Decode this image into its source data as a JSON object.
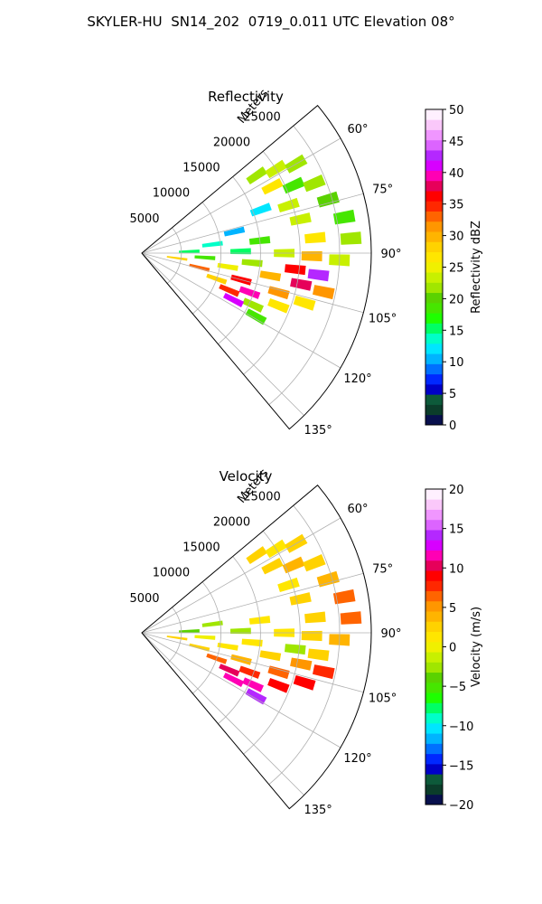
{
  "figure_title": "SKYLER-HU  SN14_202  0719_0.011 UTC Elevation 08°",
  "chart_data": [
    {
      "type": "heatmap",
      "projection": "polar-sector",
      "title": "Reflectivity",
      "radial_axis_label": "Meters",
      "radial_ticks": [
        "5000",
        "10000",
        "15000",
        "20000",
        "25000"
      ],
      "radial_tick_values": [
        5000,
        10000,
        15000,
        20000,
        25000
      ],
      "radial_max": 29000,
      "angular_range_deg": [
        50,
        140
      ],
      "angular_tick_values": [
        60,
        75,
        90,
        105,
        120,
        135
      ],
      "angular_ticks": [
        "60°",
        "75°",
        "90°",
        "105°",
        "120°",
        "135°"
      ],
      "grid": true,
      "colorbar": {
        "label": "Reflectivity dBZ",
        "min": 0,
        "max": 50,
        "tick_values": [
          0,
          5,
          10,
          15,
          20,
          25,
          30,
          35,
          40,
          45,
          50
        ],
        "ticks": [
          "0",
          "5",
          "10",
          "15",
          "20",
          "25",
          "30",
          "35",
          "40",
          "45",
          "50"
        ],
        "colors": [
          "#08104d",
          "#0b3d2a",
          "#0d5a3a",
          "#0000c8",
          "#0028ff",
          "#0070ff",
          "#00b4ff",
          "#00e6ff",
          "#00ffc8",
          "#00ff64",
          "#1eff00",
          "#46e600",
          "#5ad200",
          "#a0e600",
          "#c8f000",
          "#f0f000",
          "#ffe600",
          "#ffd200",
          "#ffb400",
          "#ff9600",
          "#ff6400",
          "#ff2800",
          "#ff0000",
          "#e6005a",
          "#ff00b4",
          "#d700ff",
          "#b428ff",
          "#dc64ff",
          "#f096ff",
          "#fac8fa",
          "#fff0ff"
        ]
      },
      "cells": [
        {
          "az": 56,
          "r": 17500,
          "v": 22
        },
        {
          "az": 58,
          "r": 20000,
          "v": 24
        },
        {
          "az": 60,
          "r": 22500,
          "v": 21
        },
        {
          "az": 63,
          "r": 18500,
          "v": 26
        },
        {
          "az": 66,
          "r": 21000,
          "v": 19
        },
        {
          "az": 68,
          "r": 23500,
          "v": 22
        },
        {
          "az": 70,
          "r": 16000,
          "v": 12
        },
        {
          "az": 72,
          "r": 19500,
          "v": 24
        },
        {
          "az": 74,
          "r": 24500,
          "v": 20
        },
        {
          "az": 77,
          "r": 12000,
          "v": 11
        },
        {
          "az": 78,
          "r": 20500,
          "v": 23
        },
        {
          "az": 80,
          "r": 26000,
          "v": 19
        },
        {
          "az": 83,
          "r": 9000,
          "v": 13
        },
        {
          "az": 84,
          "r": 15000,
          "v": 18
        },
        {
          "az": 85,
          "r": 22000,
          "v": 27
        },
        {
          "az": 86,
          "r": 26500,
          "v": 21
        },
        {
          "az": 88,
          "r": 6000,
          "v": 16
        },
        {
          "az": 89,
          "r": 12500,
          "v": 15
        },
        {
          "az": 90,
          "r": 18000,
          "v": 23
        },
        {
          "az": 91,
          "r": 21500,
          "v": 30
        },
        {
          "az": 92,
          "r": 25000,
          "v": 24
        },
        {
          "az": 94,
          "r": 8000,
          "v": 19
        },
        {
          "az": 95,
          "r": 14000,
          "v": 22
        },
        {
          "az": 96,
          "r": 19500,
          "v": 36
        },
        {
          "az": 97,
          "r": 22500,
          "v": 42
        },
        {
          "az": 98,
          "r": 4500,
          "v": 28
        },
        {
          "az": 99,
          "r": 11000,
          "v": 25
        },
        {
          "az": 100,
          "r": 16500,
          "v": 30
        },
        {
          "az": 101,
          "r": 20500,
          "v": 38
        },
        {
          "az": 102,
          "r": 23500,
          "v": 32
        },
        {
          "az": 104,
          "r": 7500,
          "v": 33
        },
        {
          "az": 105,
          "r": 13000,
          "v": 37
        },
        {
          "az": 106,
          "r": 18000,
          "v": 31
        },
        {
          "az": 107,
          "r": 21500,
          "v": 26
        },
        {
          "az": 109,
          "r": 10000,
          "v": 29
        },
        {
          "az": 110,
          "r": 14500,
          "v": 40
        },
        {
          "az": 111,
          "r": 18500,
          "v": 27
        },
        {
          "az": 113,
          "r": 12000,
          "v": 34
        },
        {
          "az": 115,
          "r": 15500,
          "v": 22
        },
        {
          "az": 117,
          "r": 13000,
          "v": 41
        },
        {
          "az": 119,
          "r": 16500,
          "v": 19
        }
      ]
    },
    {
      "type": "heatmap",
      "projection": "polar-sector",
      "title": "Velocity",
      "radial_axis_label": "Meters",
      "radial_ticks": [
        "5000",
        "10000",
        "15000",
        "20000",
        "25000"
      ],
      "radial_tick_values": [
        5000,
        10000,
        15000,
        20000,
        25000
      ],
      "radial_max": 29000,
      "angular_range_deg": [
        50,
        140
      ],
      "angular_tick_values": [
        60,
        75,
        90,
        105,
        120,
        135
      ],
      "angular_ticks": [
        "60°",
        "75°",
        "90°",
        "105°",
        "120°",
        "135°"
      ],
      "grid": true,
      "colorbar": {
        "label": "Velocity (m/s)",
        "min": -20,
        "max": 20,
        "tick_values": [
          -20,
          -15,
          -10,
          -5,
          0,
          5,
          10,
          15,
          20
        ],
        "ticks": [
          "−20",
          "−15",
          "−10",
          "−5",
          "0",
          "5",
          "10",
          "15",
          "20"
        ],
        "colors": [
          "#08104d",
          "#0b3d2a",
          "#0d5a3a",
          "#0000c8",
          "#0028ff",
          "#0070ff",
          "#00b4ff",
          "#00e6ff",
          "#00ffc8",
          "#00ff64",
          "#1eff00",
          "#46e600",
          "#5ad200",
          "#a0e600",
          "#c8f000",
          "#f0f000",
          "#ffe600",
          "#ffd200",
          "#ffb400",
          "#ff9600",
          "#ff6400",
          "#ff2800",
          "#ff0000",
          "#e6005a",
          "#ff00b4",
          "#d700ff",
          "#b428ff",
          "#dc64ff",
          "#f096ff",
          "#fac8fa",
          "#fff0ff"
        ]
      },
      "cells": [
        {
          "az": 56,
          "r": 17500,
          "v": 2
        },
        {
          "az": 58,
          "r": 20000,
          "v": 1
        },
        {
          "az": 60,
          "r": 22500,
          "v": 3
        },
        {
          "az": 63,
          "r": 18500,
          "v": 2
        },
        {
          "az": 66,
          "r": 21000,
          "v": 4
        },
        {
          "az": 68,
          "r": 23500,
          "v": 3
        },
        {
          "az": 72,
          "r": 19500,
          "v": 1
        },
        {
          "az": 74,
          "r": 24500,
          "v": 4
        },
        {
          "az": 78,
          "r": 20500,
          "v": 2
        },
        {
          "az": 80,
          "r": 26000,
          "v": 7
        },
        {
          "az": 83,
          "r": 9000,
          "v": -3
        },
        {
          "az": 84,
          "r": 15000,
          "v": 1
        },
        {
          "az": 85,
          "r": 22000,
          "v": 3
        },
        {
          "az": 86,
          "r": 26500,
          "v": 6
        },
        {
          "az": 88,
          "r": 6000,
          "v": -4
        },
        {
          "az": 89,
          "r": 12500,
          "v": -2
        },
        {
          "az": 90,
          "r": 18000,
          "v": 1
        },
        {
          "az": 91,
          "r": 21500,
          "v": 2
        },
        {
          "az": 92,
          "r": 25000,
          "v": 4
        },
        {
          "az": 94,
          "r": 8000,
          "v": 0
        },
        {
          "az": 95,
          "r": 14000,
          "v": 1
        },
        {
          "az": 96,
          "r": 19500,
          "v": -2
        },
        {
          "az": 97,
          "r": 22500,
          "v": 3
        },
        {
          "az": 98,
          "r": 4500,
          "v": 2
        },
        {
          "az": 99,
          "r": 11000,
          "v": 1
        },
        {
          "az": 100,
          "r": 16500,
          "v": 2
        },
        {
          "az": 101,
          "r": 20500,
          "v": 5
        },
        {
          "az": 102,
          "r": 23500,
          "v": 8
        },
        {
          "az": 104,
          "r": 7500,
          "v": 3
        },
        {
          "az": 105,
          "r": 13000,
          "v": 4
        },
        {
          "az": 106,
          "r": 18000,
          "v": 7
        },
        {
          "az": 107,
          "r": 21500,
          "v": 9
        },
        {
          "az": 109,
          "r": 10000,
          "v": 6
        },
        {
          "az": 110,
          "r": 14500,
          "v": 8
        },
        {
          "az": 111,
          "r": 18500,
          "v": 9
        },
        {
          "az": 113,
          "r": 12000,
          "v": 10
        },
        {
          "az": 115,
          "r": 15500,
          "v": 12
        },
        {
          "az": 117,
          "r": 13000,
          "v": 11
        },
        {
          "az": 119,
          "r": 16500,
          "v": 14
        }
      ]
    }
  ]
}
